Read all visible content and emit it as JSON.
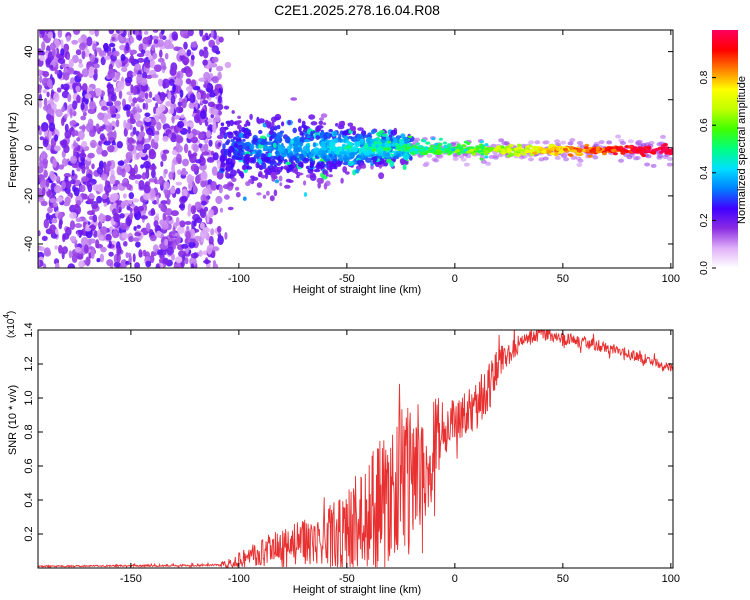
{
  "title": "C2E1.2025.278.16.04.R08",
  "chart_data": [
    {
      "type": "heatmap",
      "title": "C2E1.2025.278.16.04.R08",
      "xlabel": "Height of straight line (km)",
      "ylabel": "Frequency (Hz)",
      "xlim": [
        -193,
        101
      ],
      "ylim": [
        -50,
        49
      ],
      "xticks": [
        -150,
        -100,
        -50,
        0,
        50,
        100
      ],
      "xtick_labels": [
        "-150",
        "-100",
        "-50",
        "0",
        "50",
        "100"
      ],
      "yticks": [
        -40,
        -20,
        0,
        20,
        40
      ],
      "ytick_labels": [
        "-40",
        "-20",
        "0",
        "20",
        "40"
      ],
      "description_of_structure": {
        "noise_region_x": [
          -193,
          -108
        ],
        "transition_region_x": [
          -108,
          -20
        ],
        "tone_region_x": [
          -20,
          101
        ],
        "tone_frequency_hz": -1
      },
      "colorbar": {
        "label": "Normalized spectral amplitude",
        "range": [
          0.0,
          1.0
        ],
        "ticks": [
          0.0,
          0.2,
          0.4,
          0.6,
          0.8
        ],
        "tick_labels": [
          "0.0",
          "0.2",
          "0.4",
          "0.6",
          "0.8"
        ],
        "colors": [
          "#ffffff",
          "#e0b0f8",
          "#8a2be2",
          "#4000ff",
          "#0080ff",
          "#00e0ff",
          "#00ff80",
          "#40ff00",
          "#c0ff00",
          "#ffff00",
          "#ff8000",
          "#ff0000",
          "#ff0060"
        ]
      }
    },
    {
      "type": "line",
      "xlabel": "Height of straight line (km)",
      "ylabel": "SNR (10 * v/v)",
      "yscale_label": "(x10",
      "yscale_exponent": "4",
      "xlim": [
        -193,
        101
      ],
      "ylim": [
        0.0,
        1.4
      ],
      "xticks": [
        -150,
        -100,
        -50,
        0,
        50,
        100
      ],
      "xtick_labels": [
        "-150",
        "-100",
        "-50",
        "0",
        "50",
        "100"
      ],
      "yticks": [
        0.2,
        0.4,
        0.6,
        0.8,
        1.0,
        1.2,
        1.4
      ],
      "ytick_labels": [
        "0.2",
        "0.4",
        "0.6",
        "0.8",
        "1.0",
        "1.2",
        "1.4"
      ],
      "color": "#e83030",
      "series": [
        {
          "name": "SNR",
          "trend_x": [
            -193,
            -120,
            -108,
            -100,
            -80,
            -60,
            -50,
            -40,
            -30,
            -20,
            -12,
            -8,
            0,
            10,
            20,
            30,
            40,
            50,
            70,
            90,
            101
          ],
          "trend_y": [
            0.01,
            0.015,
            0.02,
            0.05,
            0.12,
            0.18,
            0.22,
            0.3,
            0.45,
            0.55,
            0.62,
            0.8,
            0.86,
            0.95,
            1.18,
            1.33,
            1.38,
            1.35,
            1.3,
            1.22,
            1.17
          ],
          "spread_x": [
            -193,
            -110,
            -100,
            -80,
            -60,
            -40,
            -25,
            -12,
            0,
            15,
            25,
            35,
            101
          ],
          "spread_y": [
            0.004,
            0.006,
            0.05,
            0.12,
            0.16,
            0.35,
            0.45,
            0.3,
            0.12,
            0.15,
            0.08,
            0.04,
            0.03
          ]
        }
      ]
    }
  ]
}
